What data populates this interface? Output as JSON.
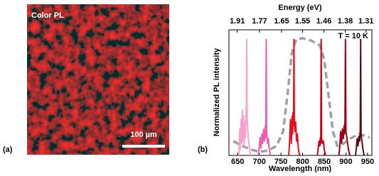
{
  "panel_a": {
    "label": "(a)",
    "title": "Color PL",
    "scale_bar": "100 µm"
  },
  "chart_data": {
    "type": "line",
    "label": "(b)",
    "xlabel": "Wavelength (nm)",
    "ylabel": "Normalized PL intensity",
    "x2label": "Energy (eV)",
    "annotation": "T = 10 K",
    "xlim": [
      630,
      960
    ],
    "ylim": [
      0,
      1.05
    ],
    "xticks": [
      650,
      700,
      750,
      800,
      850,
      900,
      950
    ],
    "x2ticks": [
      1.91,
      1.77,
      1.65,
      1.55,
      1.46,
      1.38,
      1.31
    ],
    "series": [
      {
        "color": "#f7a3cf",
        "x": [
          653,
          655,
          656,
          658,
          659,
          661,
          662,
          664,
          665,
          667,
          668,
          670,
          671,
          672,
          674,
          676,
          678,
          680
        ],
        "values": [
          0,
          0.22,
          0.05,
          0.3,
          0.1,
          0.38,
          0.12,
          0.33,
          0.08,
          0.28,
          0.15,
          0.4,
          0.97,
          0.3,
          0.18,
          0.1,
          0.05,
          0
        ]
      },
      {
        "color": "#ef5cb0",
        "x": [
          698,
          700,
          702,
          704,
          706,
          708,
          710,
          712,
          714,
          715,
          716,
          717,
          719,
          721,
          723,
          726
        ],
        "values": [
          0,
          0.08,
          0.15,
          0.06,
          0.18,
          0.1,
          0.22,
          0.12,
          0.25,
          0.15,
          0.97,
          0.2,
          0.1,
          0.14,
          0.05,
          0
        ]
      },
      {
        "color": "#e8101a",
        "x": [
          768,
          770,
          772,
          774,
          776,
          777,
          778,
          779,
          780,
          781,
          782,
          784,
          786,
          788,
          790,
          793
        ],
        "values": [
          0,
          0.12,
          0.3,
          0.1,
          0.33,
          0.18,
          0.36,
          0.25,
          0.97,
          0.3,
          0.2,
          0.28,
          0.12,
          0.18,
          0.06,
          0
        ]
      },
      {
        "color": "#c8001a",
        "x": [
          834,
          836,
          838,
          840,
          841,
          842,
          843,
          844,
          846,
          848,
          850,
          853
        ],
        "values": [
          0,
          0.06,
          0.12,
          0.08,
          0.15,
          0.1,
          0.97,
          0.14,
          0.1,
          0.12,
          0.05,
          0
        ]
      },
      {
        "color": "#9a0018",
        "x": [
          884,
          886,
          888,
          890,
          892,
          894,
          896,
          897,
          898,
          899,
          900,
          902,
          904,
          906,
          909
        ],
        "values": [
          0,
          0.08,
          0.2,
          0.1,
          0.22,
          0.14,
          0.25,
          0.18,
          0.3,
          0.97,
          0.2,
          0.16,
          0.1,
          0.05,
          0
        ]
      },
      {
        "color": "#5c0a14",
        "x": [
          922,
          924,
          926,
          928,
          930,
          932,
          933,
          934,
          935,
          937,
          939,
          942
        ],
        "values": [
          0,
          0.06,
          0.14,
          0.08,
          0.16,
          0.12,
          0.2,
          0.97,
          0.18,
          0.12,
          0.06,
          0
        ]
      },
      {
        "color": "#a0a0a0",
        "dash": true,
        "x": [
          640,
          660,
          680,
          700,
          720,
          740,
          755,
          765,
          775,
          785,
          800,
          820,
          840,
          850,
          860,
          870,
          880,
          895,
          910,
          930,
          955
        ],
        "values": [
          0.12,
          0.08,
          0.05,
          0.03,
          0.04,
          0.08,
          0.2,
          0.5,
          0.85,
          0.97,
          0.98,
          0.96,
          0.92,
          0.8,
          0.5,
          0.2,
          0.08,
          0.1,
          0.14,
          0.18,
          0.15
        ]
      }
    ]
  }
}
